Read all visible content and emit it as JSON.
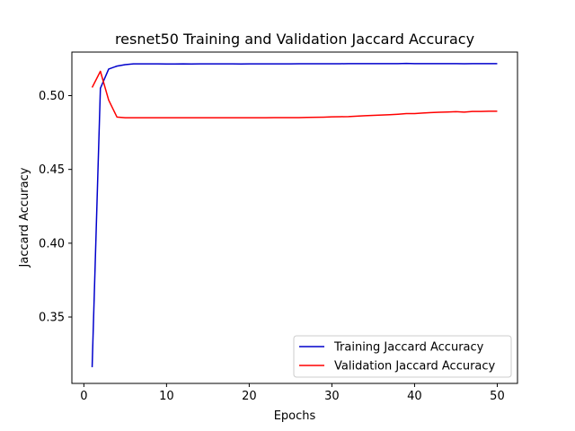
{
  "chart_data": {
    "type": "line",
    "title": "resnet50 Training and Validation Jaccard Accuracy",
    "xlabel": "Epochs",
    "ylabel": "Jaccard Accuracy",
    "xlim": [
      -1.45,
      52.45
    ],
    "ylim": [
      0.305,
      0.5295
    ],
    "xticks": [
      0,
      10,
      20,
      30,
      40,
      50
    ],
    "yticks": [
      0.35,
      0.4,
      0.45,
      0.5
    ],
    "ytick_labels": [
      "0.35",
      "0.40",
      "0.45",
      "0.50"
    ],
    "grid": false,
    "legend_position": "lower-right",
    "x": [
      1,
      2,
      3,
      4,
      5,
      6,
      7,
      8,
      9,
      10,
      11,
      12,
      13,
      14,
      15,
      16,
      17,
      18,
      19,
      20,
      21,
      22,
      23,
      24,
      25,
      26,
      27,
      28,
      29,
      30,
      31,
      32,
      33,
      34,
      35,
      36,
      37,
      38,
      39,
      40,
      41,
      42,
      43,
      44,
      45,
      46,
      47,
      48,
      49,
      50
    ],
    "series": [
      {
        "name": "Training Jaccard Accuracy",
        "color": "#0000cc",
        "values": [
          0.316,
          0.505,
          0.518,
          0.52,
          0.521,
          0.5215,
          0.5215,
          0.5215,
          0.5215,
          0.5214,
          0.5214,
          0.5215,
          0.5214,
          0.5215,
          0.5215,
          0.5215,
          0.5215,
          0.5215,
          0.5214,
          0.5215,
          0.5215,
          0.5215,
          0.5215,
          0.5215,
          0.5215,
          0.5216,
          0.5216,
          0.5216,
          0.5216,
          0.5216,
          0.5216,
          0.5217,
          0.5217,
          0.5217,
          0.5217,
          0.5217,
          0.5217,
          0.5217,
          0.5218,
          0.5217,
          0.5217,
          0.5217,
          0.5217,
          0.5217,
          0.5217,
          0.5216,
          0.5217,
          0.5217,
          0.5217,
          0.5217
        ]
      },
      {
        "name": "Validation Jaccard Accuracy",
        "color": "#ff0000",
        "values": [
          0.5055,
          0.5165,
          0.497,
          0.4855,
          0.485,
          0.485,
          0.485,
          0.485,
          0.485,
          0.485,
          0.485,
          0.485,
          0.485,
          0.485,
          0.485,
          0.485,
          0.485,
          0.485,
          0.485,
          0.485,
          0.485,
          0.485,
          0.4851,
          0.4851,
          0.4851,
          0.4851,
          0.4852,
          0.4853,
          0.4854,
          0.4856,
          0.4857,
          0.4858,
          0.4861,
          0.4864,
          0.4866,
          0.4868,
          0.4871,
          0.4874,
          0.4878,
          0.4878,
          0.4882,
          0.4885,
          0.4887,
          0.4889,
          0.4891,
          0.4888,
          0.4893,
          0.4893,
          0.4894,
          0.4894
        ]
      }
    ]
  }
}
